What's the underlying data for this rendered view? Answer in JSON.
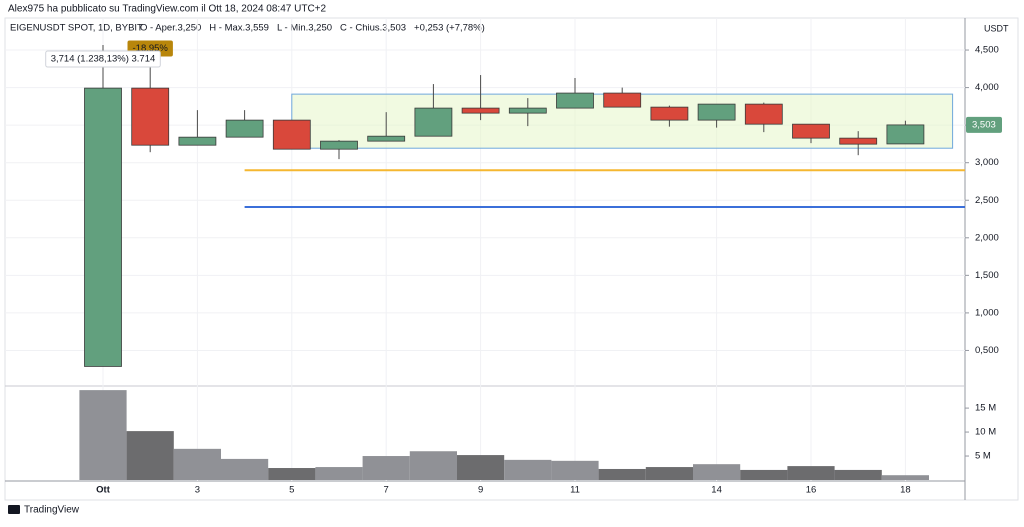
{
  "published": "Alex975 ha pubblicato su TradingView.com il Ott 18, 2024 08:47 UTC+2",
  "footer": "TradingView",
  "chart_data": [
    {
      "type": "candlestick",
      "title": "EIGENUSDT SPOT, 1D, BYBIT",
      "legend_items": [
        "O - Aper.3,250",
        "H - Max.3,559",
        "L - Min.3,250",
        "C - Chius.3,503",
        "+0,253 (+7,78%)"
      ],
      "unit": "USDT",
      "categories": [
        "Ott",
        null,
        "3",
        null,
        "5",
        null,
        "7",
        null,
        "9",
        null,
        "11",
        null,
        null,
        "14",
        null,
        "16",
        null,
        "18"
      ],
      "open": [
        0.287,
        3.993,
        3.233,
        3.34,
        3.567,
        3.18,
        3.287,
        3.353,
        3.727,
        3.66,
        3.727,
        3.927,
        3.74,
        3.567,
        3.78,
        3.513,
        3.327,
        3.25
      ],
      "high": [
        4.567,
        4.3,
        3.7,
        3.7,
        3.567,
        3.3,
        3.673,
        4.047,
        4.167,
        3.86,
        4.127,
        4.0,
        3.76,
        3.78,
        3.8,
        3.513,
        3.42,
        3.559
      ],
      "low": [
        0.287,
        3.14,
        3.233,
        3.34,
        3.18,
        3.047,
        3.287,
        3.353,
        3.567,
        3.487,
        3.727,
        3.74,
        3.48,
        3.467,
        3.407,
        3.26,
        3.1,
        3.25
      ],
      "close": [
        3.993,
        3.233,
        3.34,
        3.567,
        3.18,
        3.287,
        3.353,
        3.727,
        3.66,
        3.727,
        3.927,
        3.74,
        3.567,
        3.78,
        3.513,
        3.327,
        3.247,
        3.503
      ],
      "up_color": "#62a07e",
      "down_color": "#d9483b",
      "ylim": [
        0.04,
        4.9
      ],
      "yticks": [
        {
          "value": 0.5,
          "label": "0,500"
        },
        {
          "value": 1,
          "label": "1,000"
        },
        {
          "value": 1.5,
          "label": "1,500"
        },
        {
          "value": 2,
          "label": "2,000"
        },
        {
          "value": 2.5,
          "label": "2,500"
        },
        {
          "value": 3,
          "label": "3,000"
        },
        {
          "value": 3.5,
          "label": "3,500"
        },
        {
          "value": 4,
          "label": "4,000"
        },
        {
          "value": 4.5,
          "label": "4,500"
        }
      ],
      "grid": true,
      "last_price": {
        "value": 3.503,
        "label": "3,503"
      },
      "hlines": [
        {
          "value": 2.9,
          "color": "#f5b731",
          "from": 3
        },
        {
          "value": 2.41,
          "color": "#3b6fd9",
          "from": 3
        }
      ],
      "box": {
        "x": [
          4,
          18
        ],
        "y": [
          3.193,
          3.913
        ]
      },
      "annotations": [
        {
          "text": "-18,95%",
          "x": 1,
          "y": 4.52
        },
        {
          "text": "3,714 (1.238,13%) 3.714",
          "x": 0,
          "y": 4.38
        }
      ]
    },
    {
      "type": "bar",
      "title": null,
      "values": [
        18.75,
        10.2,
        6.5,
        4.4,
        2.5,
        2.7,
        5,
        6,
        5.2,
        4.2,
        4,
        2.3,
        2.7,
        3.3,
        2.1,
        2.9,
        2.1,
        1.0
      ],
      "ylim": [
        0,
        19.4
      ],
      "yticks": [
        {
          "value": 5,
          "label": "5 M"
        },
        {
          "value": 10,
          "label": "10 M"
        },
        {
          "value": 15,
          "label": "15 M"
        }
      ],
      "up_color": "#909196",
      "down_color": "#6c6c6e"
    }
  ]
}
